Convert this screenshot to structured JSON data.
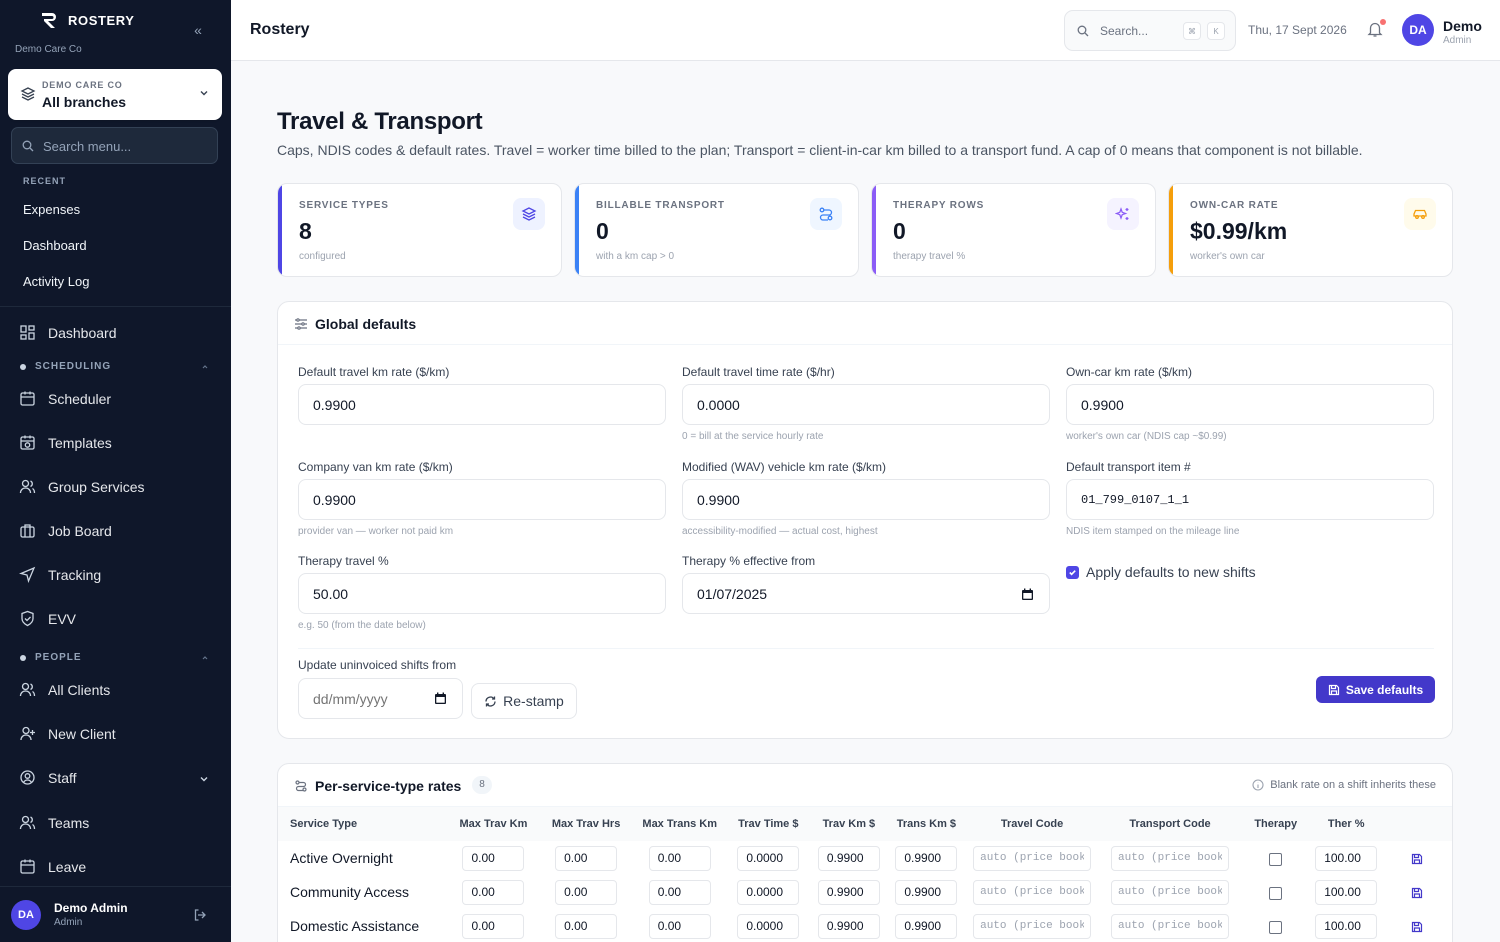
{
  "app": {
    "name": "ROSTERY",
    "org_sub": "Demo Care Co"
  },
  "org_selector": {
    "label": "DEMO CARE CO",
    "value": "All branches"
  },
  "sidebar": {
    "search_placeholder": "Search menu...",
    "recent_label": "RECENT",
    "recent": [
      "Expenses",
      "Dashboard",
      "Activity Log"
    ],
    "dashboard": "Dashboard",
    "scheduling_label": "SCHEDULING",
    "scheduling": [
      "Scheduler",
      "Templates",
      "Group Services",
      "Job Board",
      "Tracking",
      "EVV"
    ],
    "people_label": "PEOPLE",
    "people": [
      "All Clients",
      "New Client",
      "Staff",
      "Teams",
      "Leave"
    ],
    "user": {
      "initials": "DA",
      "name": "Demo Admin",
      "role": "Admin"
    }
  },
  "topbar": {
    "title": "Rostery",
    "search_placeholder": "Search...",
    "kbd": [
      "⌘",
      "K"
    ],
    "date": "Thu, 17 Sept 2026",
    "user": {
      "initials": "DA",
      "name": "Demo",
      "role": "Admin"
    }
  },
  "page": {
    "title": "Travel & Transport",
    "subtitle": "Caps, NDIS codes & default rates. Travel = worker time billed to the plan; Transport = client-in-car km billed to a transport fund. A cap of 0 means that component is not billable."
  },
  "stats": [
    {
      "label": "SERVICE TYPES",
      "value": "8",
      "sub": "configured",
      "color": "#4f46e5",
      "icon": "layers-icon"
    },
    {
      "label": "BILLABLE TRANSPORT",
      "value": "0",
      "sub": "with a km cap > 0",
      "color": "#3b82f6",
      "icon": "route-icon"
    },
    {
      "label": "THERAPY ROWS",
      "value": "0",
      "sub": "therapy travel %",
      "color": "#8b5cf6",
      "icon": "sparkles-icon"
    },
    {
      "label": "OWN-CAR RATE",
      "value": "$0.99/km",
      "sub": "worker's own car",
      "color": "#f59e0b",
      "icon": "car-icon"
    }
  ],
  "global": {
    "title": "Global defaults",
    "travel_km": {
      "label": "Default travel km rate ($/km)",
      "value": "0.9900"
    },
    "travel_time": {
      "label": "Default travel time rate ($/hr)",
      "value": "0.0000",
      "hint": "0 = bill at the service hourly rate"
    },
    "own_car": {
      "label": "Own-car km rate ($/km)",
      "value": "0.9900",
      "hint": "worker's own car (NDIS cap ~$0.99)"
    },
    "company_van": {
      "label": "Company van km rate ($/km)",
      "value": "0.9900",
      "hint": "provider van — worker not paid km"
    },
    "wav": {
      "label": "Modified (WAV) vehicle km rate ($/km)",
      "value": "0.9900",
      "hint": "accessibility-modified — actual cost, highest"
    },
    "transport_item": {
      "label": "Default transport item #",
      "value": "01_799_0107_1_1",
      "hint": "NDIS item stamped on the mileage line"
    },
    "therapy_pct": {
      "label": "Therapy travel %",
      "value": "50.00",
      "hint": "e.g. 50 (from the date below)"
    },
    "therapy_from": {
      "label": "Therapy % effective from",
      "value": "01/07/2025"
    },
    "apply_defaults": {
      "label": "Apply defaults to new shifts",
      "checked": true
    },
    "update_from": {
      "label": "Update uninvoiced shifts from",
      "placeholder": "dd/mm/yyyy"
    },
    "restamp": "Re-stamp",
    "save": "Save defaults"
  },
  "rates": {
    "title": "Per-service-type rates",
    "count": "8",
    "note": "Blank rate on a shift inherits these",
    "columns": [
      "Service Type",
      "Max Trav Km",
      "Max Trav Hrs",
      "Max Trans Km",
      "Trav Time $",
      "Trav Km $",
      "Trans Km $",
      "Travel Code",
      "Transport Code",
      "Therapy",
      "Ther %"
    ],
    "code_placeholder": "auto (price book)",
    "rows": [
      {
        "name": "Active Overnight",
        "max_trav_km": "0.00",
        "max_trav_hrs": "0.00",
        "max_trans_km": "0.00",
        "trav_time": "0.0000",
        "trav_km": "0.9900",
        "trans_km": "0.9900",
        "ther_pct": "100.00"
      },
      {
        "name": "Community Access",
        "max_trav_km": "0.00",
        "max_trav_hrs": "0.00",
        "max_trans_km": "0.00",
        "trav_time": "0.0000",
        "trav_km": "0.9900",
        "trans_km": "0.9900",
        "ther_pct": "100.00"
      },
      {
        "name": "Domestic Assistance",
        "max_trav_km": "0.00",
        "max_trav_hrs": "0.00",
        "max_trans_km": "0.00",
        "trav_time": "0.0000",
        "trav_km": "0.9900",
        "trans_km": "0.9900",
        "ther_pct": "100.00"
      }
    ]
  }
}
